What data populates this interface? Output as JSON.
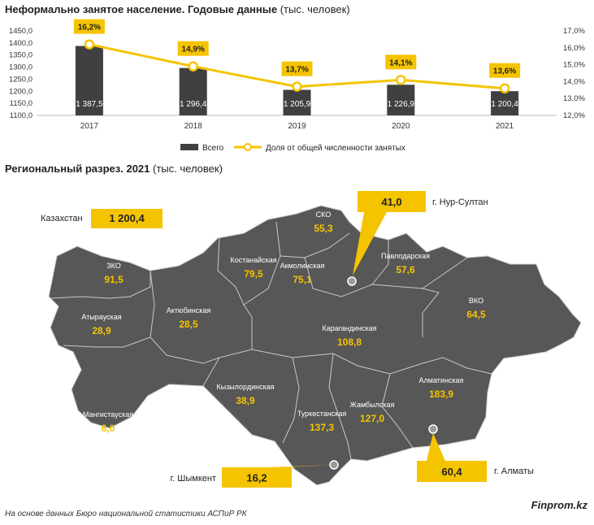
{
  "chart_title": "Неформально занятое население. Годовые данные",
  "chart_unit": "(тыс. человек)",
  "chart_data": {
    "type": "bar",
    "categories": [
      "2017",
      "2018",
      "2019",
      "2020",
      "2021"
    ],
    "series": [
      {
        "name": "Всего",
        "type": "bar",
        "axis": "left",
        "values": [
          1387.5,
          1296.4,
          1205.9,
          1226.9,
          1200.4
        ],
        "labels": [
          "1 387,5",
          "1 296,4",
          "1 205,9",
          "1 226,9",
          "1 200,4"
        ],
        "color": "#404040"
      },
      {
        "name": "Доля от общей численности занятых",
        "type": "line",
        "axis": "right",
        "values": [
          16.2,
          14.9,
          13.7,
          14.1,
          13.6
        ],
        "labels": [
          "16,2%",
          "14,9%",
          "13,7%",
          "14,1%",
          "13,6%"
        ],
        "color": "#F5C400"
      }
    ],
    "y_left": {
      "min": 1100,
      "max": 1450,
      "step": 50,
      "ticks": [
        "1100,0",
        "1150,0",
        "1200,0",
        "1250,0",
        "1300,0",
        "1350,0",
        "1400,0",
        "1450,0"
      ]
    },
    "y_right": {
      "min": 12,
      "max": 17,
      "step": 1,
      "ticks": [
        "12,0%",
        "13,0%",
        "14,0%",
        "15,0%",
        "16,0%",
        "17,0%"
      ]
    },
    "legend_position": "bottom"
  },
  "map_title": "Региональный разрез. 2021",
  "map_unit": "(тыс. человек)",
  "map": {
    "total_label": "Казахстан",
    "total_value": "1 200,4",
    "regions": [
      {
        "name": "ЗКО",
        "value": "91,5"
      },
      {
        "name": "Атырауская",
        "value": "28,9"
      },
      {
        "name": "Мангистауская",
        "value": "6,0"
      },
      {
        "name": "Актюбинская",
        "value": "28,5"
      },
      {
        "name": "Костанайская",
        "value": "79,5"
      },
      {
        "name": "СКО",
        "value": "55,3"
      },
      {
        "name": "Акмолинская",
        "value": "75,1"
      },
      {
        "name": "Павлодарская",
        "value": "57,6"
      },
      {
        "name": "ВКО",
        "value": "64,5"
      },
      {
        "name": "Карагандинская",
        "value": "108,8"
      },
      {
        "name": "Кызылординская",
        "value": "38,9"
      },
      {
        "name": "Туркестанская",
        "value": "137,3"
      },
      {
        "name": "Жамбылская",
        "value": "127,0"
      },
      {
        "name": "Алматинская",
        "value": "183,9"
      }
    ],
    "cities": [
      {
        "name": "г. Нур-Султан",
        "value": "41,0"
      },
      {
        "name": "г. Шымкент",
        "value": "16,2"
      },
      {
        "name": "г. Алматы",
        "value": "60,4"
      }
    ],
    "colors": {
      "map_fill": "#575757",
      "border": "#bdbdbd",
      "accent": "#F5C400",
      "label": "#ffffff",
      "value": "#F5C400"
    }
  },
  "footer": "На основе данных Бюро национальной статистики АСПиР РК",
  "brand": "Finprom.kz"
}
